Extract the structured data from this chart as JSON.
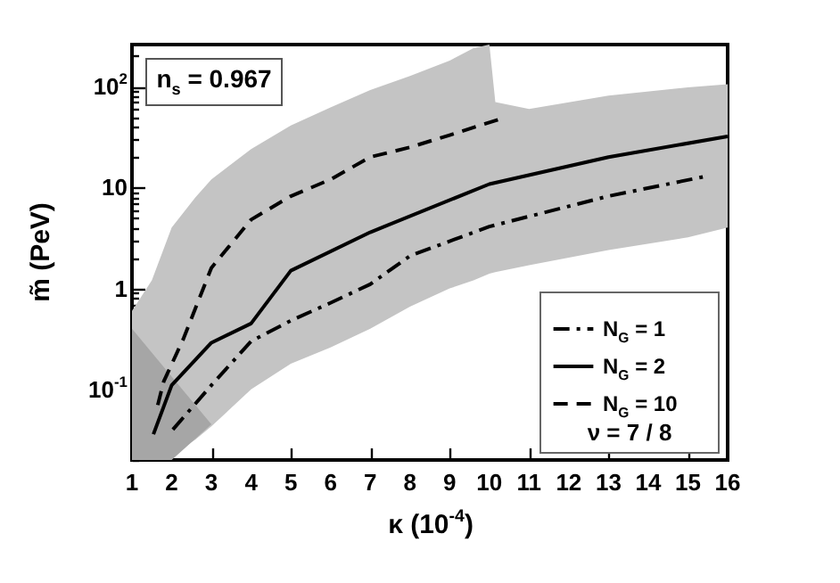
{
  "chart_data": {
    "type": "line",
    "xlabel": "κ (10$^{-4}$)",
    "ylabel": "m̃ (PeV)",
    "log": "y",
    "xlim": [
      1,
      16
    ],
    "xticks": [
      1,
      2,
      3,
      4,
      5,
      6,
      7,
      8,
      9,
      10,
      11,
      12,
      13,
      14,
      15,
      16
    ],
    "ylim": [
      0.02,
      260
    ],
    "yticks": [
      {
        "value": 0.02,
        "label": null
      },
      {
        "value": 0.03,
        "label": null
      },
      {
        "value": 0.04,
        "label": null
      },
      {
        "value": 0.05,
        "label": null
      },
      {
        "value": 0.06,
        "label": null
      },
      {
        "value": 0.07,
        "label": null
      },
      {
        "value": 0.08,
        "label": null
      },
      {
        "value": 0.09,
        "label": null
      },
      {
        "value": 0.1,
        "label": "10$^{-1}$"
      },
      {
        "value": 0.2,
        "label": null
      },
      {
        "value": 0.3,
        "label": null
      },
      {
        "value": 0.4,
        "label": null
      },
      {
        "value": 0.5,
        "label": null
      },
      {
        "value": 0.6,
        "label": null
      },
      {
        "value": 0.7,
        "label": null
      },
      {
        "value": 0.8,
        "label": null
      },
      {
        "value": 0.9,
        "label": null
      },
      {
        "value": 1,
        "label": "1"
      },
      {
        "value": 2,
        "label": null
      },
      {
        "value": 3,
        "label": null
      },
      {
        "value": 4,
        "label": null
      },
      {
        "value": 5,
        "label": null
      },
      {
        "value": 6,
        "label": null
      },
      {
        "value": 7,
        "label": null
      },
      {
        "value": 8,
        "label": null
      },
      {
        "value": 9,
        "label": null
      },
      {
        "value": 10,
        "label": "10"
      },
      {
        "value": 20,
        "label": null
      },
      {
        "value": 30,
        "label": null
      },
      {
        "value": 40,
        "label": null
      },
      {
        "value": 50,
        "label": null
      },
      {
        "value": 60,
        "label": null
      },
      {
        "value": 70,
        "label": null
      },
      {
        "value": 80,
        "label": null
      },
      {
        "value": 90,
        "label": null
      },
      {
        "value": 100,
        "label": "10$^{2}$"
      },
      {
        "value": 200,
        "label": null
      }
    ],
    "series": [
      {
        "type": "area",
        "color": "#c4c4c4",
        "x": [
          1,
          1.5,
          2,
          2.6,
          3,
          4,
          5,
          6,
          7,
          8,
          9,
          9.6,
          10,
          10.15,
          11,
          13,
          15,
          16
        ],
        "values": [
          null,
          null,
          null,
          null,
          null,
          null,
          null,
          null,
          null,
          null,
          null,
          null,
          null,
          null,
          null,
          null,
          null,
          null
        ],
        "upper": [
          0.6,
          1.2,
          4,
          8,
          12,
          24,
          41,
          62,
          92,
          127,
          180,
          240,
          260,
          70,
          60,
          81,
          98,
          105
        ],
        "lower": [
          0.02,
          0.02,
          0.022,
          0.032,
          0.043,
          0.1,
          0.18,
          0.26,
          0.4,
          0.66,
          1.0,
          1.2,
          1.4,
          1.45,
          1.7,
          2.4,
          3.2,
          4
        ]
      },
      {
        "type": "area",
        "color": "#a6a6a6",
        "x": [
          1,
          2,
          3
        ],
        "values": [
          null,
          null,
          null
        ],
        "upper": [
          0.4,
          0.134,
          0.045
        ],
        "lower": [
          0.02,
          0.02,
          0.045
        ]
      },
      {
        "name": "N$_{G}$ = 1",
        "color": "#000000",
        "line_style": "dashdot",
        "x": [
          2.03,
          3,
          4,
          5,
          6,
          7,
          8,
          10,
          13,
          15.5
        ],
        "values": [
          0.04,
          0.11,
          0.3,
          0.48,
          0.72,
          1.1,
          2.1,
          4.1,
          8.2,
          13
        ]
      },
      {
        "name": "N$_{G}$ = 2",
        "color": "#000000",
        "line_style": "solid",
        "x": [
          1.54,
          2,
          3,
          4,
          5,
          7,
          10,
          13,
          16
        ],
        "values": [
          0.036,
          0.11,
          0.29,
          0.45,
          1.5,
          3.6,
          10.8,
          20,
          32
        ]
      },
      {
        "name": "N$_{G}$ = 10",
        "color": "#000000",
        "line_style": "dashed",
        "x": [
          1.65,
          1.8,
          2.3,
          3,
          4,
          5,
          6,
          7,
          8,
          9,
          10.3
        ],
        "values": [
          0.07,
          0.12,
          0.32,
          1.6,
          4.8,
          8.2,
          12,
          20,
          25,
          33,
          48
        ]
      }
    ],
    "legend": "bottom right",
    "annotations": [
      "n$_{s}$ = 0.967",
      "ν = 7 / 8"
    ]
  }
}
